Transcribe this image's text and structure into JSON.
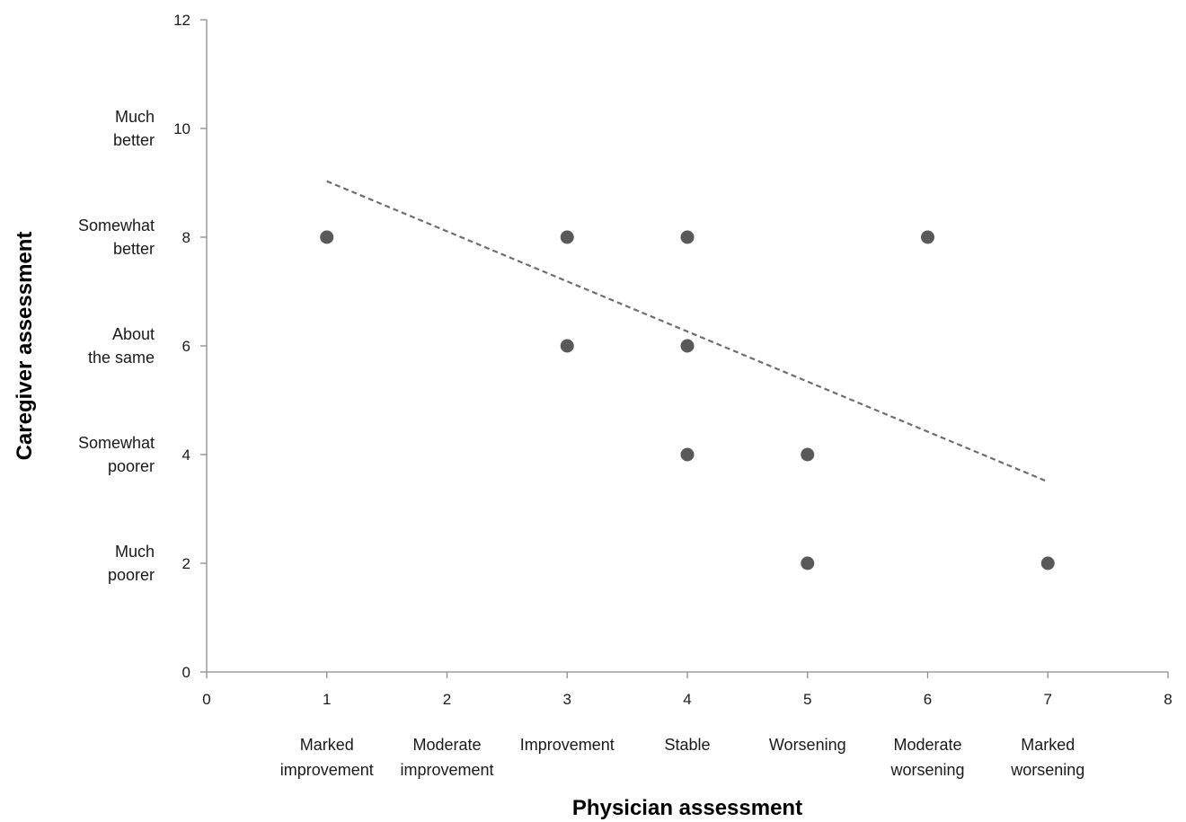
{
  "chart_data": {
    "type": "scatter",
    "title": "",
    "xlabel": "Physician assessment",
    "ylabel": "Caregiver assessment",
    "xlim": [
      0,
      8
    ],
    "ylim": [
      0,
      12
    ],
    "x_ticks": [
      0,
      1,
      2,
      3,
      4,
      5,
      6,
      7,
      8
    ],
    "y_ticks": [
      0,
      2,
      4,
      6,
      8,
      10,
      12
    ],
    "x_categories": [
      {
        "x": 1,
        "lines": [
          "Marked",
          "improvement"
        ]
      },
      {
        "x": 2,
        "lines": [
          "Moderate",
          "improvement"
        ]
      },
      {
        "x": 3,
        "lines": [
          "Improvement"
        ]
      },
      {
        "x": 4,
        "lines": [
          "Stable"
        ]
      },
      {
        "x": 5,
        "lines": [
          "Worsening"
        ]
      },
      {
        "x": 6,
        "lines": [
          "Moderate",
          "worsening"
        ]
      },
      {
        "x": 7,
        "lines": [
          "Marked",
          "worsening"
        ]
      }
    ],
    "y_categories": [
      {
        "y": 10,
        "lines": [
          "Much",
          "better"
        ]
      },
      {
        "y": 8,
        "lines": [
          "Somewhat",
          "better"
        ]
      },
      {
        "y": 6,
        "lines": [
          "About",
          "the same"
        ]
      },
      {
        "y": 4,
        "lines": [
          "Somewhat",
          "poorer"
        ]
      },
      {
        "y": 2,
        "lines": [
          "Much",
          "poorer"
        ]
      }
    ],
    "series": [
      {
        "points": [
          {
            "x": 1,
            "y": 8
          },
          {
            "x": 3,
            "y": 8
          },
          {
            "x": 4,
            "y": 8
          },
          {
            "x": 6,
            "y": 8
          },
          {
            "x": 3,
            "y": 6
          },
          {
            "x": 4,
            "y": 6
          },
          {
            "x": 4,
            "y": 4
          },
          {
            "x": 5,
            "y": 4
          },
          {
            "x": 5,
            "y": 2
          },
          {
            "x": 7,
            "y": 2
          }
        ]
      }
    ],
    "trendline": {
      "style": "dashed",
      "start": {
        "x": 1,
        "y": 9.03
      },
      "end": {
        "x": 7,
        "y": 3.5
      }
    },
    "grid": false,
    "legend": "none"
  }
}
